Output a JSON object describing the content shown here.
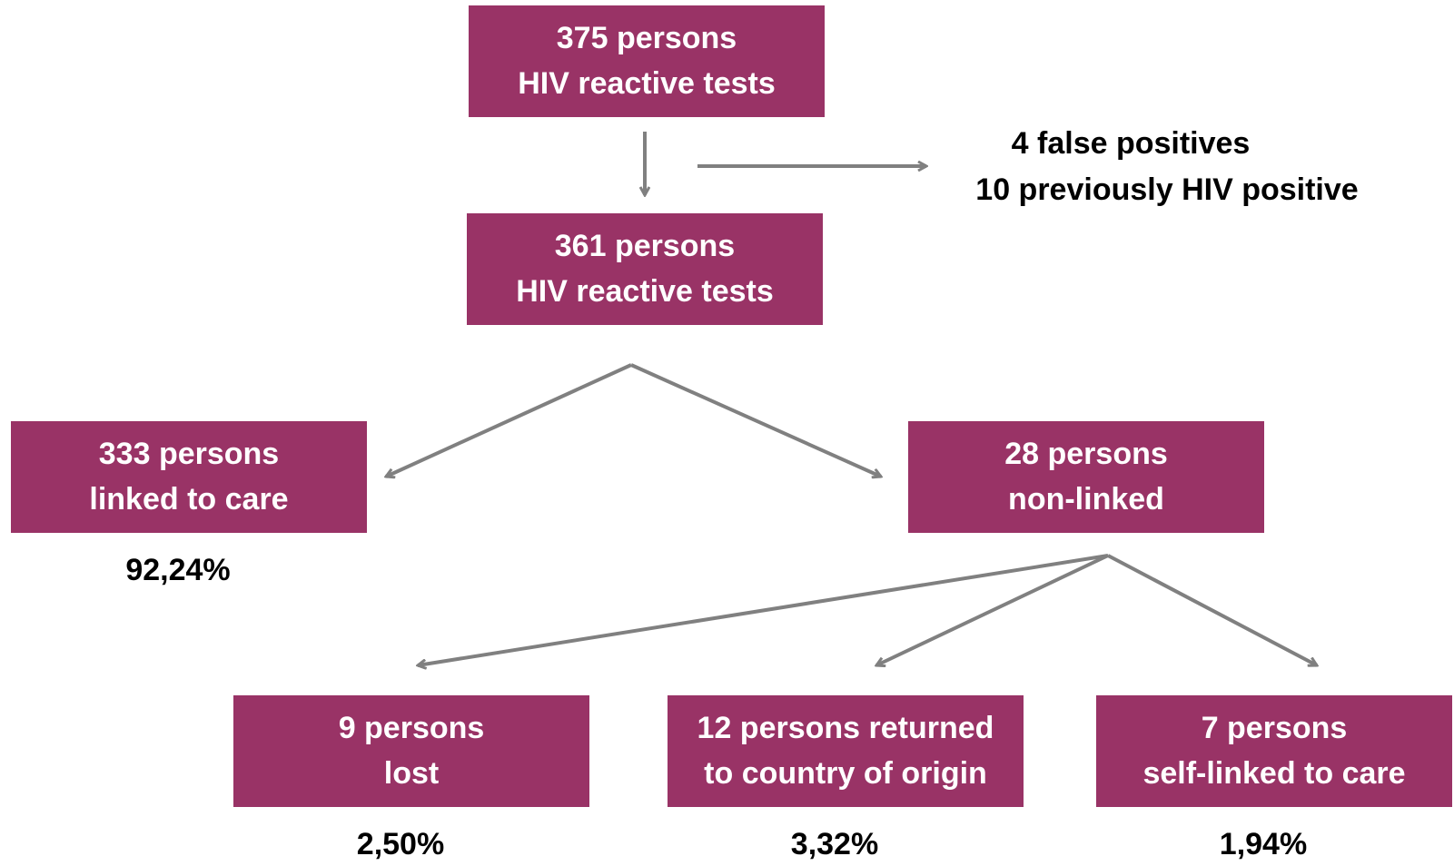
{
  "nodes": [
    {
      "lines": [
        "375 persons",
        "HIV reactive tests"
      ]
    },
    {
      "lines": [
        "361 persons",
        "HIV reactive tests"
      ]
    },
    {
      "lines": [
        "333 persons",
        "linked to care"
      ],
      "percent": "92,24%"
    },
    {
      "lines": [
        "28 persons",
        "non-linked"
      ]
    },
    {
      "lines": [
        "9 persons",
        "lost"
      ],
      "percent": "2,50%"
    },
    {
      "lines": [
        "12 persons returned",
        "to country of origin"
      ],
      "percent": "3,32%"
    },
    {
      "lines": [
        "7 persons",
        "self-linked to care"
      ],
      "percent": "1,94%"
    }
  ],
  "excluded": [
    "4 false positives",
    "10 previously HIV positive"
  ]
}
